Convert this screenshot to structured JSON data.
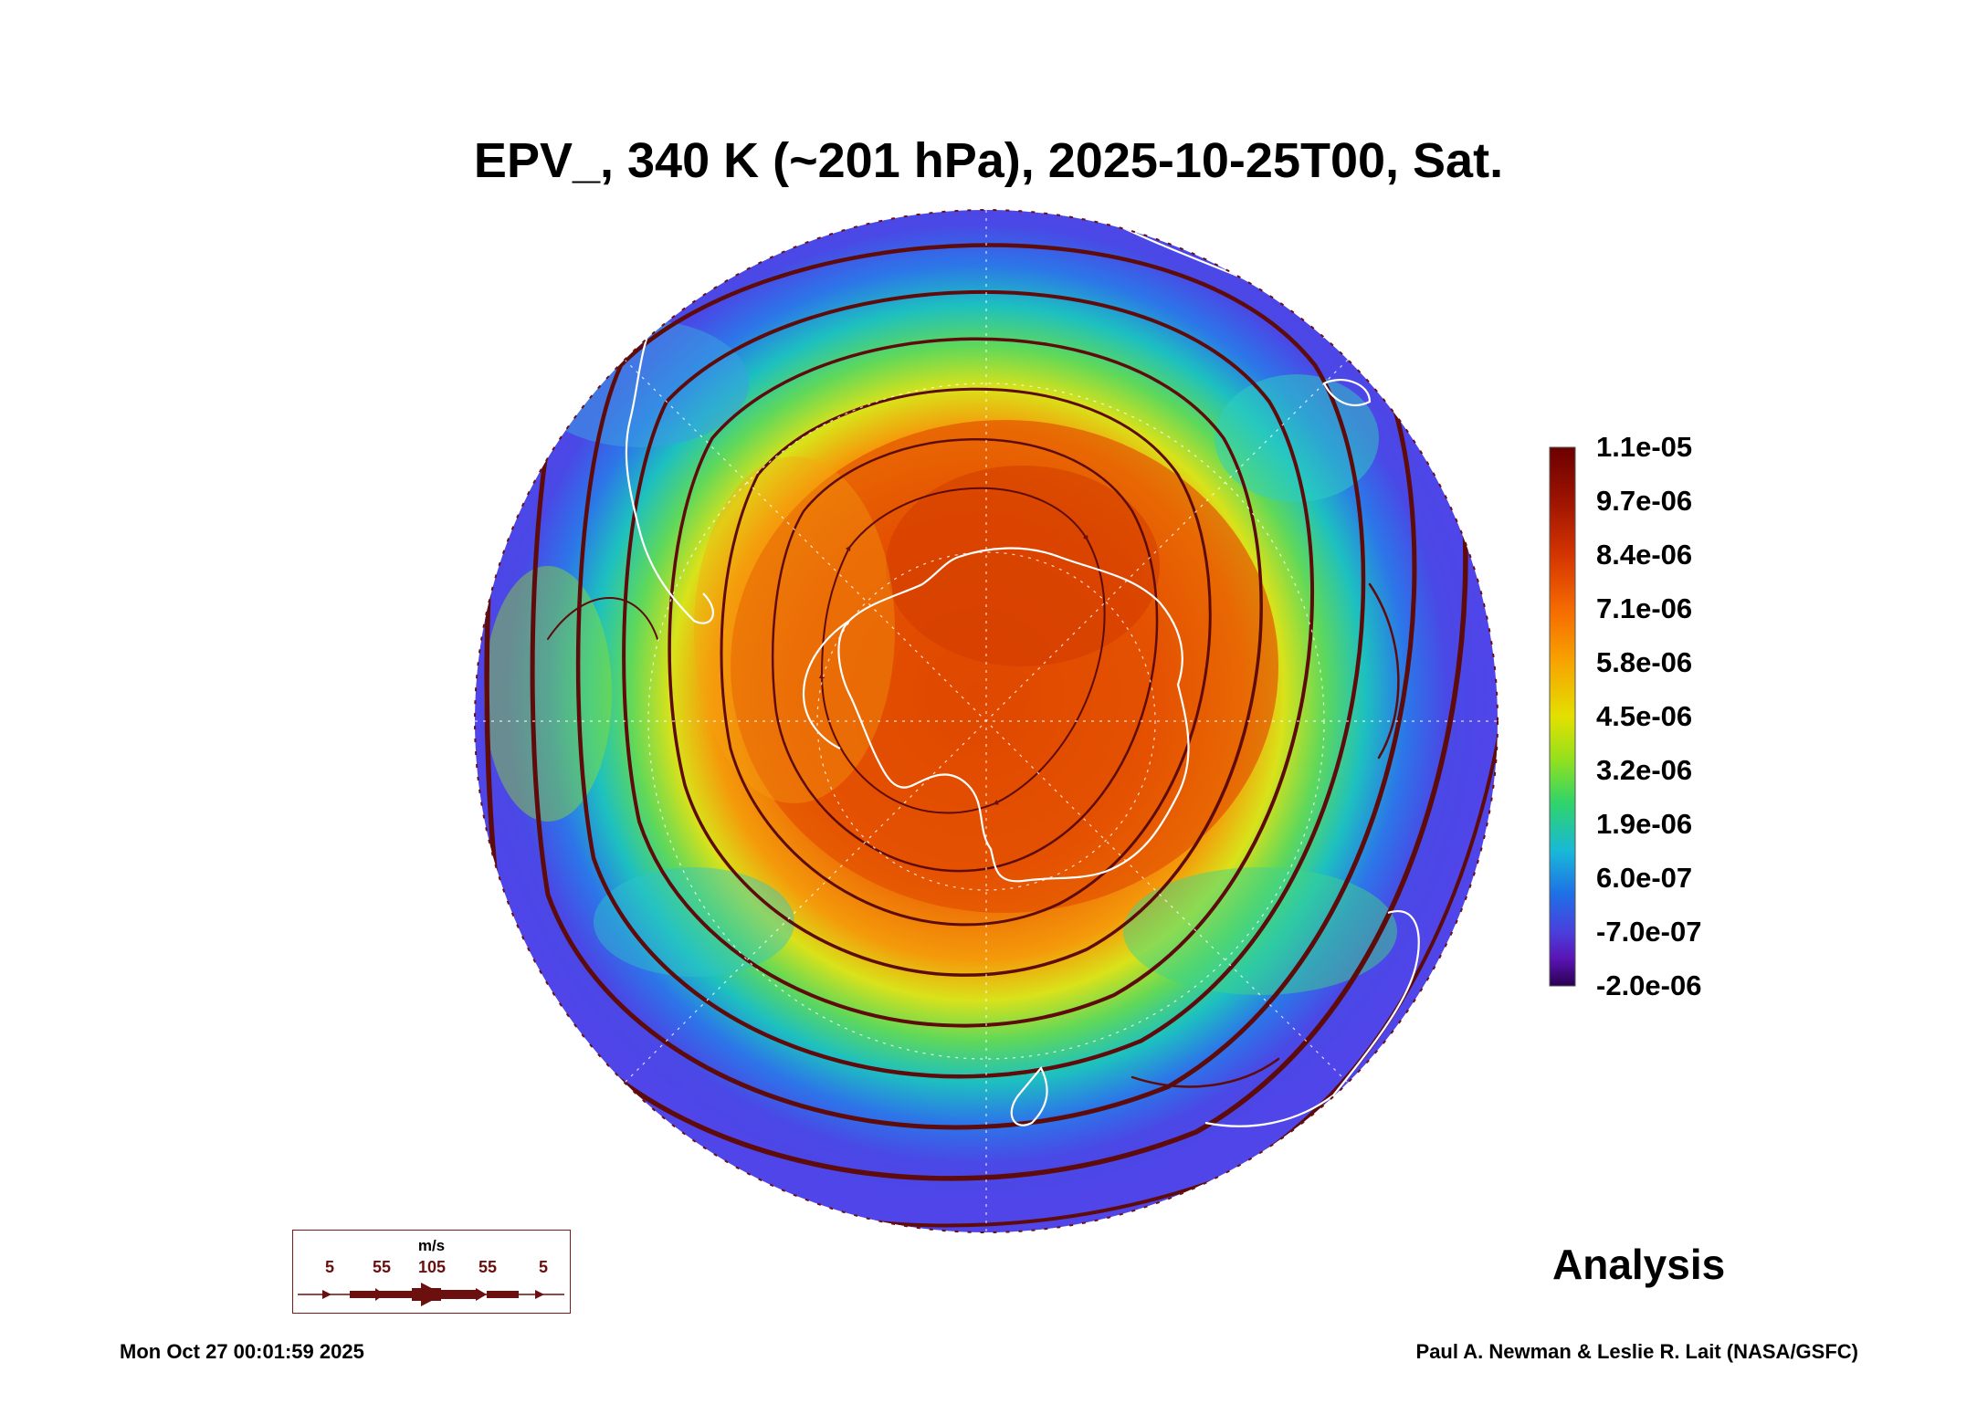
{
  "title": "EPV_, 340 K (~201 hPa), 2025-10-25T00, Sat.",
  "colorbar": {
    "labels": [
      "1.1e-05",
      "9.7e-06",
      "8.4e-06",
      "7.1e-06",
      "5.8e-06",
      "4.5e-06",
      "3.2e-06",
      "1.9e-06",
      "6.0e-07",
      "-7.0e-07",
      "-2.0e-06"
    ],
    "colors": [
      "#6b0000",
      "#9e1400",
      "#d43500",
      "#f56a00",
      "#f7a400",
      "#e3e000",
      "#93e01e",
      "#2fd46a",
      "#19b8d8",
      "#1f6fe6",
      "#4a3fdc",
      "#5a14b4",
      "#2a0050"
    ]
  },
  "wind_legend": {
    "units": "m/s",
    "speeds": [
      "5",
      "55",
      "105",
      "55",
      "5"
    ]
  },
  "label": "Analysis",
  "timestamp": "Mon Oct 27 00:01:59 2025",
  "credit": "Paul A. Newman & Leslie R. Lait (NASA/GSFC)"
}
